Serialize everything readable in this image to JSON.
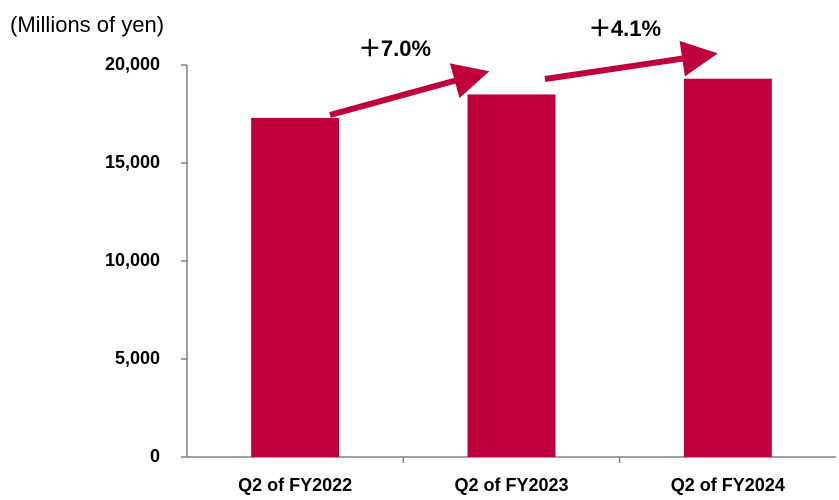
{
  "chart_data": {
    "type": "bar",
    "title": "(Millions of yen)",
    "categories": [
      "Q2 of FY2022",
      "Q2 of FY2023",
      "Q2 of FY2024"
    ],
    "values": [
      17300,
      18500,
      19300
    ],
    "color": "#c0003c",
    "ylim": [
      0,
      20000
    ],
    "yticks": [
      0,
      {
        "value": 5000,
        "label": "5,000"
      },
      {
        "value": 10000,
        "label": "10,000"
      },
      {
        "value": 15000,
        "label": "15,000"
      },
      {
        "value": 20000,
        "label": "20,000"
      }
    ],
    "annotations": [
      {
        "text": "＋7.0%"
      },
      {
        "text": "＋4.1%"
      }
    ]
  }
}
